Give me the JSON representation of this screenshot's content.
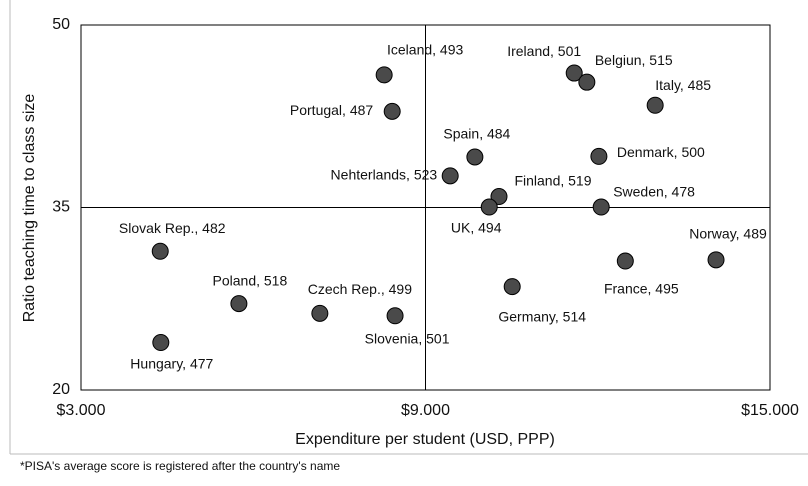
{
  "chart_data": {
    "type": "scatter",
    "xlabel": "Expenditure per student (USD, PPP)",
    "ylabel": "Ratio teaching time to class size",
    "footnote": "*PISA's average score is registered after the country's name",
    "xlim": [
      3000,
      15000
    ],
    "xticks": [
      {
        "value": 3000,
        "label": "$3.000"
      },
      {
        "value": 9000,
        "label": "$9.000"
      },
      {
        "value": 15000,
        "label": "$15.000"
      }
    ],
    "ylim": [
      20,
      50
    ],
    "yticks": [
      20,
      35,
      50
    ],
    "grid": true,
    "color": "#4a4a4a",
    "labels": [
      "Iceland, 493",
      "Portugal, 487",
      "Ireland, 501",
      "Belgiun, 515",
      "Italy, 485",
      "Spain, 484",
      "Denmark, 500",
      "Nehterlands, 523",
      "Finland, 519",
      "UK, 494",
      "Sweden, 478",
      "Slovak Rep., 482",
      "Norway, 489",
      "France, 495",
      "Germany, 514",
      "Poland, 518",
      "Czech Rep., 499",
      "Slovenia, 501",
      "Hungary, 477"
    ],
    "x": [
      8280,
      8420,
      11590,
      11810,
      13000,
      9860,
      12020,
      9430,
      10280,
      10110,
      12060,
      4380,
      14060,
      12480,
      10510,
      5750,
      7160,
      8470,
      4390
    ],
    "values": [
      45.9,
      42.9,
      46.05,
      45.3,
      43.4,
      39.15,
      39.2,
      37.6,
      35.9,
      35.04,
      35.04,
      31.4,
      30.7,
      30.6,
      28.5,
      27.1,
      26.3,
      26.1,
      23.9
    ]
  }
}
